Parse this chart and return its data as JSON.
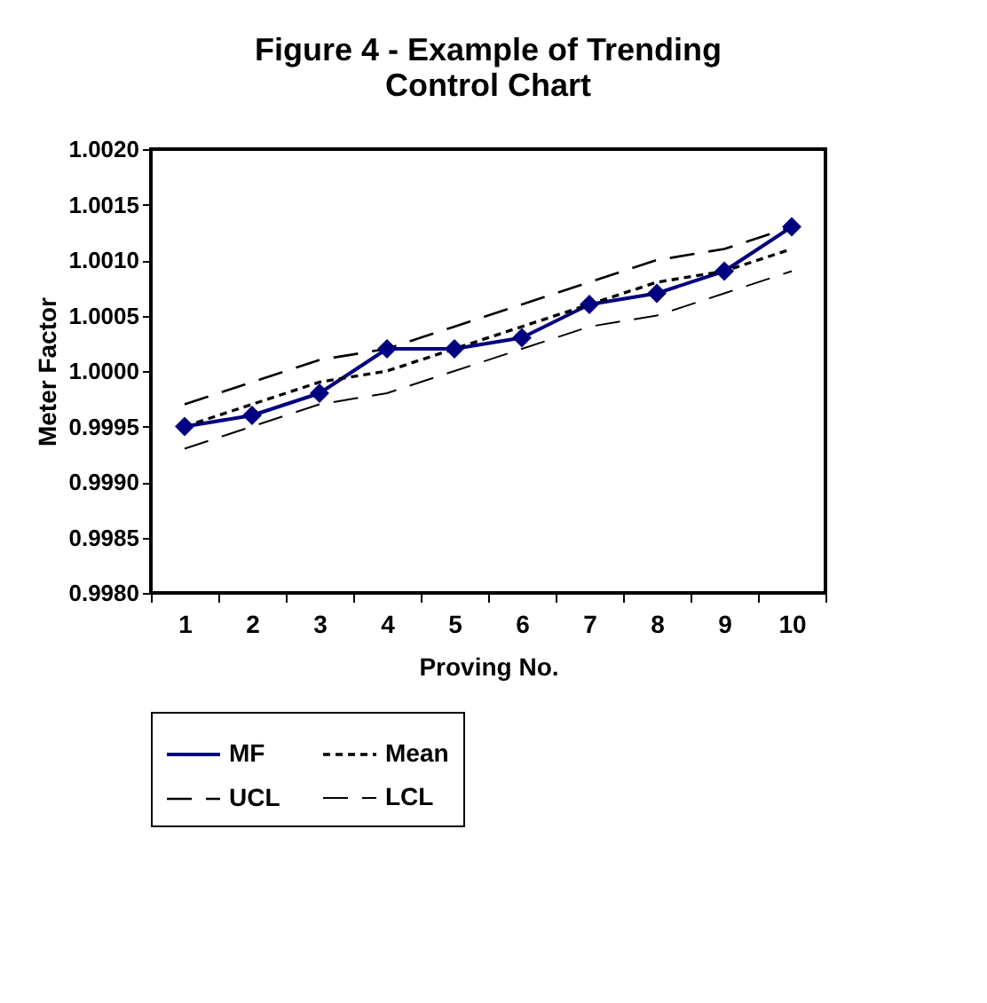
{
  "chart_data": {
    "type": "line",
    "title": "Figure 4 - Example of Trending Control Chart",
    "xlabel": "Proving No.",
    "ylabel": "Meter Factor",
    "categories": [
      "1",
      "2",
      "3",
      "4",
      "5",
      "6",
      "7",
      "8",
      "9",
      "10"
    ],
    "series": [
      {
        "name": "MF",
        "color": "#000080",
        "marker": "diamond",
        "line_style": "solid",
        "values": [
          0.9995,
          0.9996,
          0.9998,
          1.0002,
          1.0002,
          1.0003,
          1.0006,
          1.0007,
          1.0009,
          1.0013
        ]
      },
      {
        "name": "Mean",
        "color": "#000000",
        "marker": "none",
        "line_style": "dotted",
        "values": [
          0.9995,
          0.9997,
          0.9999,
          1.0,
          1.0002,
          1.0004,
          1.0006,
          1.0008,
          1.0009,
          1.0011
        ]
      },
      {
        "name": "UCL",
        "color": "#000000",
        "marker": "none",
        "line_style": "dashed",
        "values": [
          0.9997,
          0.9999,
          1.0001,
          1.0002,
          1.0004,
          1.0006,
          1.0008,
          1.001,
          1.0011,
          1.0013
        ]
      },
      {
        "name": "LCL",
        "color": "#000000",
        "marker": "none",
        "line_style": "dashed",
        "values": [
          0.9993,
          0.9995,
          0.9997,
          0.9998,
          1.0,
          1.0002,
          1.0004,
          1.0005,
          1.0007,
          1.0009
        ]
      }
    ],
    "ylim": [
      0.998,
      1.002
    ],
    "yticks": [
      {
        "value": 0.998,
        "label": "0.9980"
      },
      {
        "value": 0.9985,
        "label": "0.9985"
      },
      {
        "value": 0.999,
        "label": "0.9990"
      },
      {
        "value": 0.9995,
        "label": "0.9995"
      },
      {
        "value": 1.0,
        "label": "1.0000"
      },
      {
        "value": 1.0005,
        "label": "1.0005"
      },
      {
        "value": 1.001,
        "label": "1.0010"
      },
      {
        "value": 1.0015,
        "label": "1.0015"
      },
      {
        "value": 1.002,
        "label": "1.0020"
      }
    ],
    "legend": "bottom",
    "grid": false
  }
}
